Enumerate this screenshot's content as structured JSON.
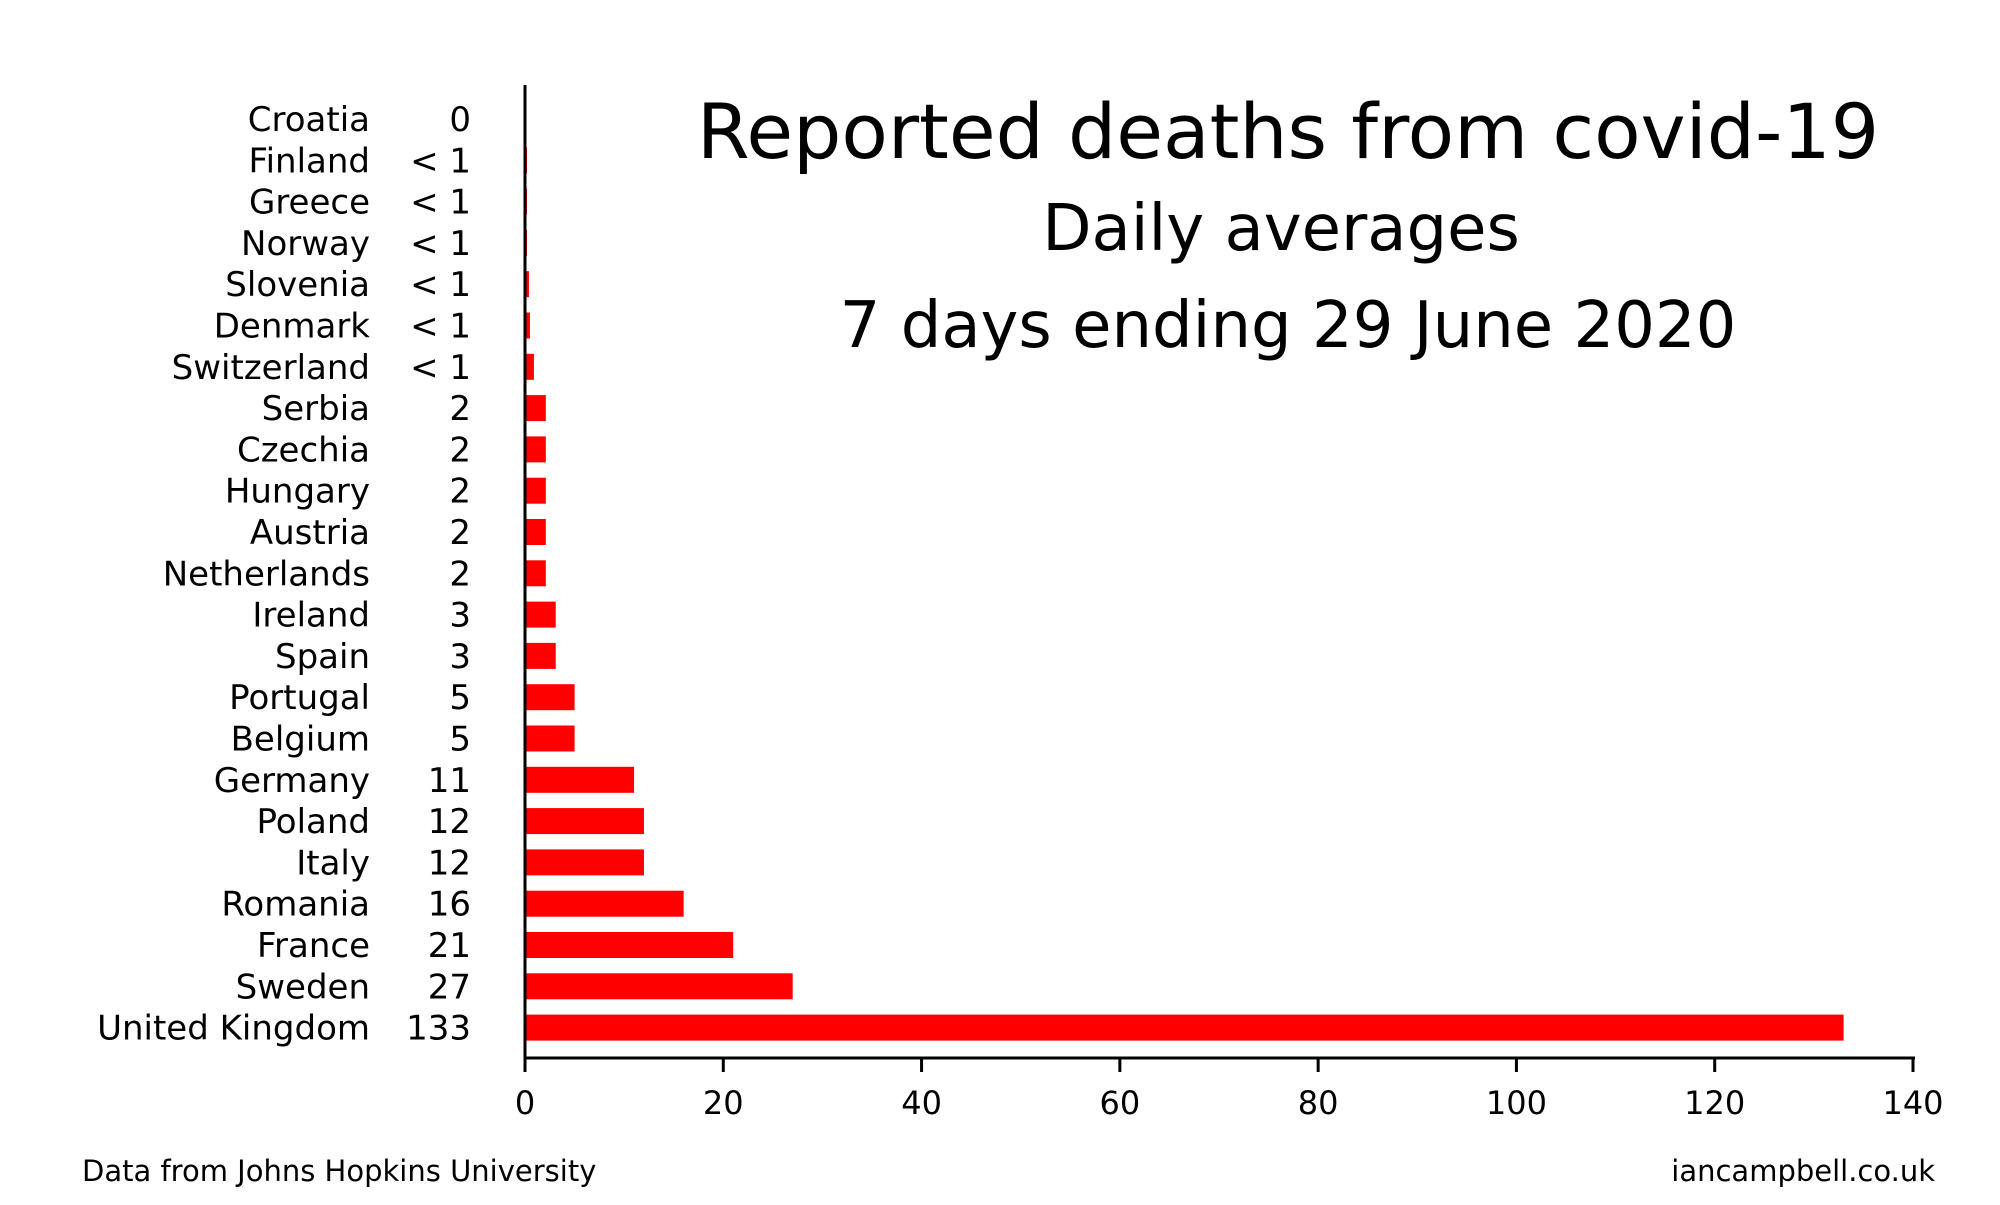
{
  "chart_data": {
    "type": "bar",
    "orientation": "horizontal",
    "title": "Reported deaths from covid-19",
    "subtitle": "Daily averages",
    "subtitle2": "7 days ending 29 June 2020",
    "categories": [
      "Croatia",
      "Finland",
      "Greece",
      "Norway",
      "Slovenia",
      "Denmark",
      "Switzerland",
      "Serbia",
      "Czechia",
      "Hungary",
      "Austria",
      "Netherlands",
      "Ireland",
      "Spain",
      "Portugal",
      "Belgium",
      "Germany",
      "Poland",
      "Italy",
      "Romania",
      "France",
      "Sweden",
      "United Kingdom"
    ],
    "values": [
      0,
      0.2,
      0.2,
      0.2,
      0.4,
      0.5,
      0.9,
      2.1,
      2.1,
      2.1,
      2.1,
      2.1,
      3.1,
      3.1,
      5,
      5,
      11,
      12,
      12,
      16,
      21,
      27,
      133
    ],
    "value_labels": [
      "0",
      "< 1",
      "< 1",
      "< 1",
      "< 1",
      "< 1",
      "< 1",
      "2",
      "2",
      "2",
      "2",
      "2",
      "3",
      "3",
      "5",
      "5",
      "11",
      "12",
      "12",
      "16",
      "21",
      "27",
      "133"
    ],
    "xlim": [
      0,
      140
    ],
    "xticks": [
      "0",
      "20",
      "40",
      "60",
      "80",
      "100",
      "120",
      "140"
    ],
    "xlabel": "",
    "ylabel": "",
    "grid": false,
    "bar_color": "#ff0000"
  },
  "footer": {
    "source": "Data from Johns Hopkins University",
    "site": "iancampbell.co.uk"
  }
}
